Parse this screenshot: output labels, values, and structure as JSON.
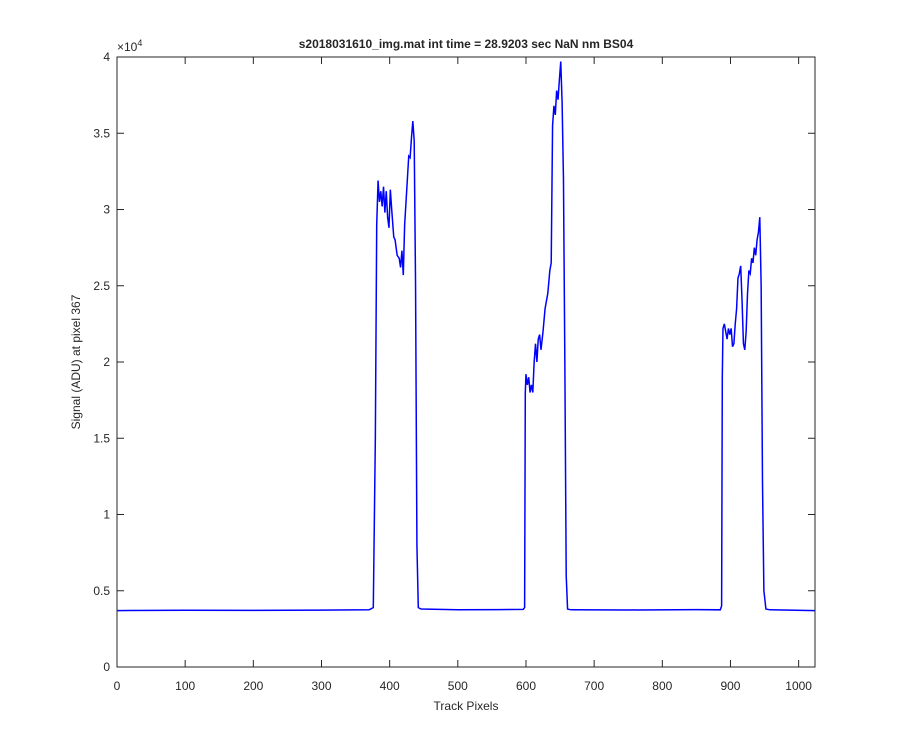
{
  "chart_data": {
    "type": "line",
    "title": "s2018031610_img.mat int time = 28.9203 sec  NaN nm BS04",
    "x_label": "Track Pixels",
    "y_label": "Signal (ADU) at pixel 367",
    "y_multiplier_base": "×10",
    "y_multiplier_exponent": "4",
    "xlim": [
      0,
      1024
    ],
    "ylim": [
      0,
      4
    ],
    "xticks": [
      0,
      100,
      200,
      300,
      400,
      500,
      600,
      700,
      800,
      900,
      1000
    ],
    "yticks": [
      0,
      0.5,
      1,
      1.5,
      2,
      2.5,
      3,
      3.5,
      4
    ],
    "series": [
      {
        "color": "#0000ff",
        "x": [
          0,
          100,
          200,
          300,
          370,
          376,
          379,
          381,
          383,
          385,
          387,
          389,
          391,
          393,
          395,
          397,
          399,
          401,
          403,
          406,
          408,
          411,
          414,
          416,
          418,
          420,
          422,
          424,
          426,
          428,
          430,
          432,
          434,
          436,
          438,
          440,
          442,
          446,
          500,
          560,
          596,
          598,
          599,
          600,
          602,
          604,
          606,
          608,
          610,
          612,
          614,
          616,
          618,
          620,
          622,
          625,
          628,
          632,
          635,
          637,
          639,
          641,
          643,
          645,
          647,
          649,
          651,
          653,
          655,
          657,
          659,
          661,
          666,
          750,
          850,
          885,
          887,
          888,
          889,
          891,
          893,
          895,
          897,
          899,
          901,
          903,
          905,
          907,
          909,
          911,
          913,
          915,
          917,
          919,
          921,
          923,
          925,
          927,
          929,
          931,
          933,
          935,
          937,
          939,
          941,
          943,
          945,
          947,
          949,
          952,
          958,
          1024
        ],
        "values": [
          0.37,
          0.372,
          0.371,
          0.373,
          0.375,
          0.39,
          1.5,
          2.9,
          3.19,
          3.05,
          3.12,
          3.02,
          3.15,
          2.98,
          3.12,
          2.95,
          2.88,
          3.13,
          3.0,
          2.82,
          2.8,
          2.7,
          2.68,
          2.62,
          2.73,
          2.57,
          2.9,
          3.05,
          3.2,
          3.35,
          3.34,
          3.47,
          3.58,
          3.45,
          2.5,
          0.8,
          0.39,
          0.38,
          0.375,
          0.376,
          0.378,
          0.39,
          1.8,
          1.92,
          1.85,
          1.9,
          1.8,
          1.85,
          1.8,
          2.0,
          2.12,
          2.0,
          2.15,
          2.18,
          2.08,
          2.2,
          2.35,
          2.45,
          2.6,
          2.65,
          3.55,
          3.68,
          3.62,
          3.78,
          3.72,
          3.85,
          3.97,
          3.7,
          3.2,
          2.0,
          0.6,
          0.38,
          0.375,
          0.374,
          0.376,
          0.375,
          0.4,
          1.9,
          2.22,
          2.25,
          2.2,
          2.15,
          2.22,
          2.18,
          2.22,
          2.1,
          2.12,
          2.25,
          2.35,
          2.55,
          2.58,
          2.63,
          2.4,
          2.12,
          2.08,
          2.2,
          2.45,
          2.6,
          2.58,
          2.68,
          2.65,
          2.75,
          2.7,
          2.8,
          2.85,
          2.95,
          2.5,
          1.2,
          0.5,
          0.38,
          0.375,
          0.37
        ]
      }
    ]
  }
}
